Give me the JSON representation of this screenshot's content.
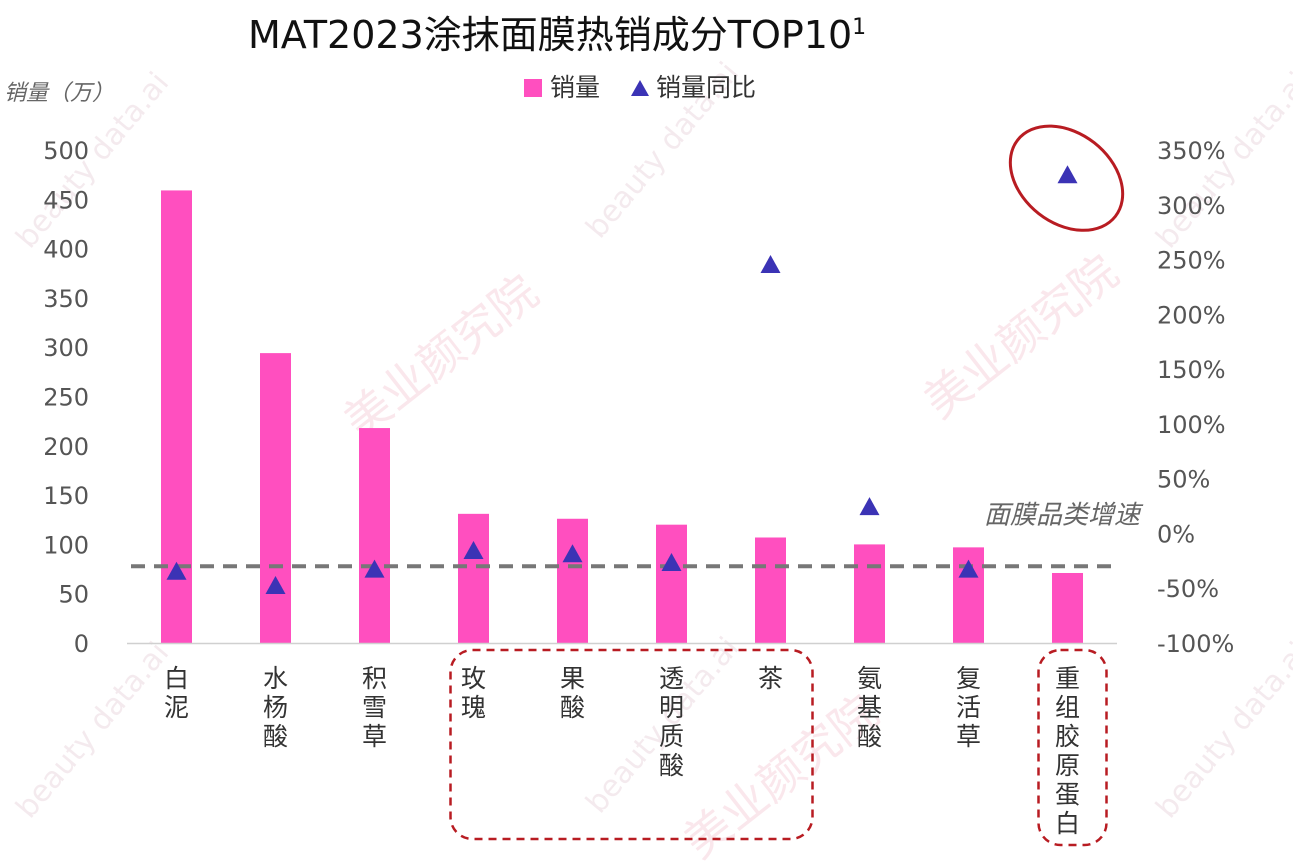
{
  "chart_data": {
    "type": "bar",
    "title": "MAT2023涂抹面膜热销成分TOP10",
    "title_superscript": "1",
    "ylabel": "销量（万）",
    "ylim": [
      0,
      500
    ],
    "y_ticks": [
      "500",
      "450",
      "400",
      "350",
      "300",
      "250",
      "200",
      "150",
      "100",
      "50",
      "0"
    ],
    "y2lim": [
      -1.0,
      3.5
    ],
    "y2_ticks": [
      "350%",
      "300%",
      "250%",
      "200%",
      "150%",
      "100%",
      "50%",
      "0%",
      "-50%",
      "-100%"
    ],
    "categories": [
      "白泥",
      "水杨酸",
      "积雪草",
      "玫瑰",
      "果酸",
      "透明质酸",
      "茶",
      "氨基酸",
      "复活草",
      "重组胶原蛋白"
    ],
    "series": [
      {
        "name": "销量",
        "type": "bar",
        "axis": "left",
        "color": "#ff4fbf",
        "values": [
          459,
          294,
          218,
          131,
          126,
          120,
          107,
          100,
          97,
          71
        ]
      },
      {
        "name": "销量同比",
        "type": "scatter",
        "marker": "triangle",
        "axis": "right",
        "color": "#3b33b5",
        "values": [
          -0.35,
          -0.48,
          -0.33,
          -0.16,
          -0.19,
          -0.27,
          2.45,
          0.24,
          -0.33,
          3.27
        ]
      }
    ],
    "reference_line": {
      "label": "面膜品类增速",
      "axis": "right",
      "value": -0.3,
      "style": "dashed",
      "color": "#777777"
    },
    "highlight_groups": [
      {
        "categories": [
          "玫瑰",
          "果酸",
          "透明质酸",
          "茶"
        ],
        "style": "dashed-box",
        "color": "#b81c22"
      },
      {
        "categories": [
          "重组胶原蛋白"
        ],
        "style": "dashed-box",
        "color": "#b81c22"
      }
    ],
    "highlight_marker": {
      "category": "重组胶原蛋白",
      "style": "ellipse",
      "color": "#b81c22"
    },
    "legend": {
      "position": "top-center"
    },
    "grid": false
  },
  "watermark": {
    "text_cn": "美业颜究院",
    "text_en": "beauty data.ai"
  }
}
